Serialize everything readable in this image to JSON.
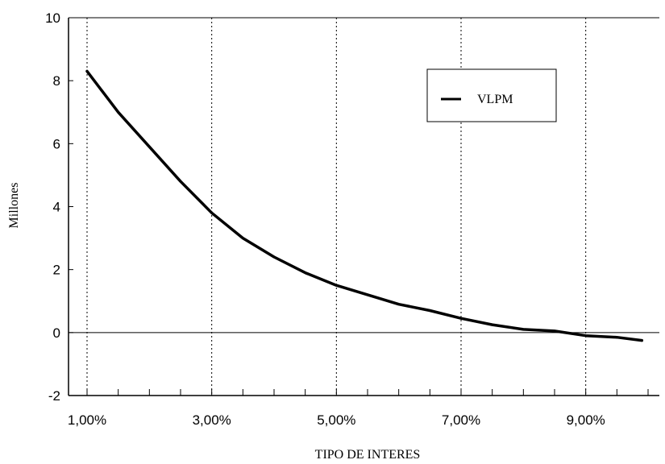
{
  "chart_data": {
    "type": "line",
    "title": "",
    "xlabel": "TIPO DE INTERES",
    "ylabel": "Millones",
    "xlim": [
      1.0,
      10.0
    ],
    "ylim": [
      -2,
      10
    ],
    "x_tick_values": [
      1,
      3,
      5,
      7,
      9
    ],
    "x_tick_labels": [
      "1,00%",
      "3,00%",
      "5,00%",
      "7,00%",
      "9,00%"
    ],
    "y_tick_values": [
      -2,
      0,
      2,
      4,
      6,
      8,
      10
    ],
    "y_tick_labels": [
      "-2",
      "0",
      "2",
      "4",
      "6",
      "8",
      "10"
    ],
    "grid": "vertical dotted lines at labeled x ticks",
    "legend_position": "top-right",
    "series": [
      {
        "name": "VLPM",
        "color": "#000000",
        "x": [
          1.0,
          1.5,
          2.0,
          2.5,
          3.0,
          3.5,
          4.0,
          4.5,
          5.0,
          5.5,
          6.0,
          6.5,
          7.0,
          7.5,
          8.0,
          8.5,
          9.0,
          9.5,
          9.9
        ],
        "y": [
          8.3,
          7.0,
          5.9,
          4.8,
          3.8,
          3.0,
          2.4,
          1.9,
          1.5,
          1.2,
          0.9,
          0.7,
          0.45,
          0.25,
          0.1,
          0.05,
          -0.1,
          -0.15,
          -0.25
        ]
      }
    ]
  }
}
